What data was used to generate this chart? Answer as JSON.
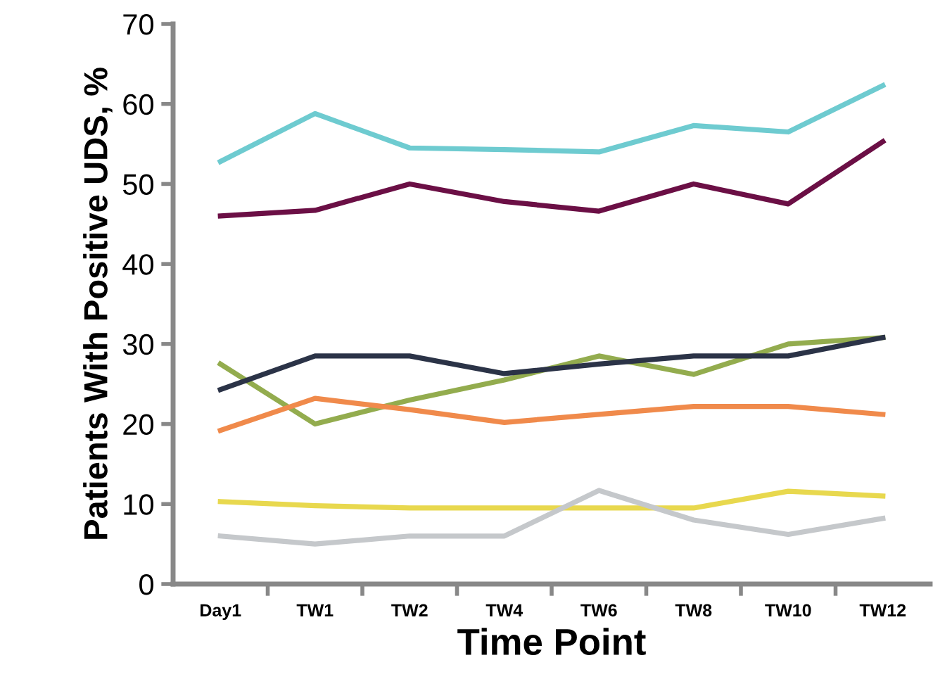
{
  "chart_data": {
    "type": "line",
    "xlabel": "Time Point",
    "ylabel": "Patients With Positive UDS, %",
    "categories": [
      "Day1",
      "TW1",
      "TW2",
      "TW4",
      "TW6",
      "TW8",
      "TW10",
      "TW12"
    ],
    "ylim": [
      0,
      70
    ],
    "yticks": [
      0,
      10,
      20,
      30,
      40,
      50,
      60,
      70
    ],
    "marker": "none",
    "line_style": "solid",
    "series": [
      {
        "color": "#6ecbd0",
        "values": [
          52.8,
          58.8,
          54.5,
          54.3,
          54,
          57.3,
          56.5,
          62.3
        ]
      },
      {
        "color": "#6b0f45",
        "values": [
          46,
          46.7,
          50,
          47.8,
          46.6,
          50,
          47.5,
          55.3
        ]
      },
      {
        "color": "#93ac4e",
        "values": [
          27.5,
          20,
          23,
          25.5,
          28.5,
          26.2,
          30,
          30.8
        ]
      },
      {
        "color": "#2b3347",
        "values": [
          24.3,
          28.5,
          28.5,
          26.3,
          27.5,
          28.5,
          28.5,
          30.8
        ]
      },
      {
        "color": "#f08a4b",
        "values": [
          19.2,
          23.2,
          21.8,
          20.2,
          21.2,
          22.2,
          22.2,
          21.2
        ]
      },
      {
        "color": "#e8d84e",
        "values": [
          10.3,
          9.8,
          9.5,
          9.5,
          9.5,
          9.5,
          11.6,
          11
        ]
      },
      {
        "color": "#c5c8cb",
        "values": [
          6,
          5,
          6,
          6,
          11.7,
          8,
          6.2,
          8.2
        ]
      }
    ]
  }
}
